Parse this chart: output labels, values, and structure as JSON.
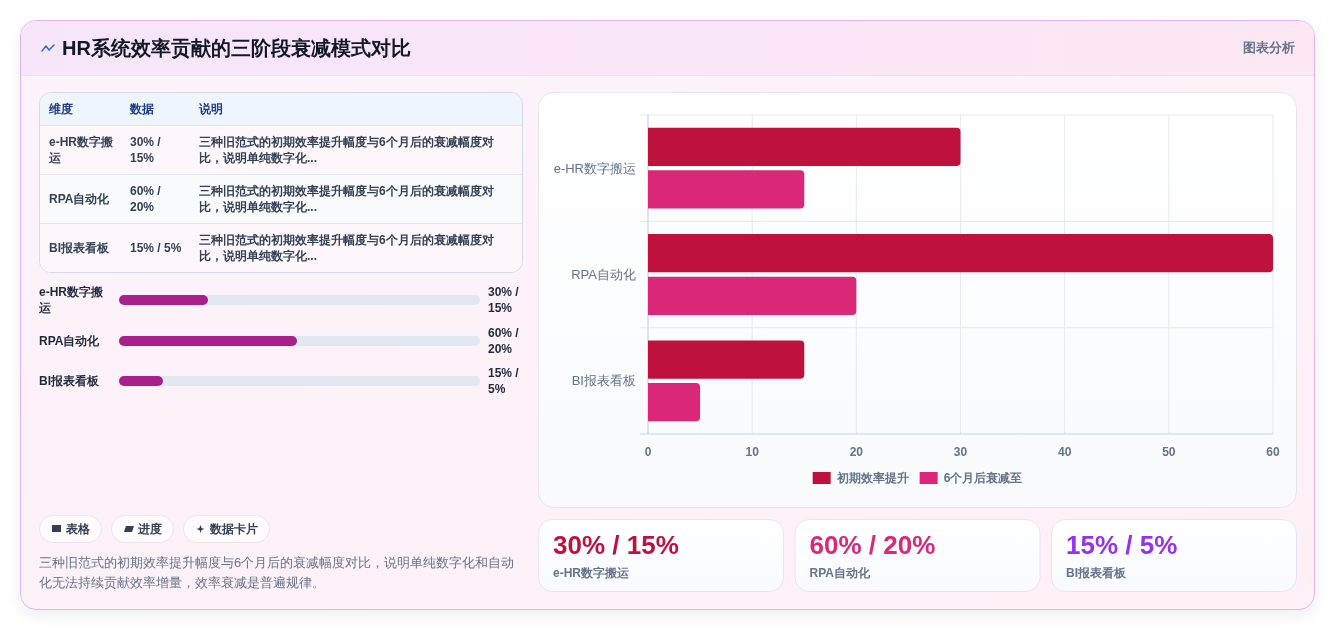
{
  "chart_data": [
    {
      "type": "other",
      "title": "HR系统效率贡献的三阶段衰减模式对比",
      "annotations": [
        "图表分析"
      ]
    },
    {
      "type": "other",
      "annotations": [
        "维度",
        "数据",
        "说明",
        "e-HR数字搬运",
        "30% / 15%",
        "三种旧范式的初期效率提升幅度与6个月后的衰减幅度对比，说明单纯数字化...",
        "RPA自动化",
        "60% / 20%",
        "三种旧范式的初期效率提升幅度与6个月后的衰减幅度对比，说明单纯数字化...",
        "BI报表看板",
        "15% / 5%",
        "三种旧范式的初期效率提升幅度与6个月后的衰减幅度对比，说明单纯数字化..."
      ]
    },
    {
      "type": "bar",
      "orientation": "horizontal",
      "categories": [
        "e-HR数字搬运",
        "RPA自动化",
        "BI报表看板"
      ],
      "series": [
        {
          "name": "初期效率提升",
          "color": "#be123c",
          "values": [
            30,
            60,
            15
          ]
        },
        {
          "name": "6个月后衰减至",
          "color": "#db2777",
          "values": [
            15,
            20,
            5
          ]
        }
      ],
      "xlim": [
        0,
        60
      ],
      "xticks": [
        0,
        10,
        20,
        30,
        40,
        50,
        60
      ],
      "grid": true,
      "legend": "bottom"
    },
    {
      "type": "bar",
      "orientation": "horizontal",
      "categories": [
        "e-HR数字搬运",
        "RPA自动化",
        "BI报表看板"
      ],
      "values": [
        30,
        60,
        15
      ],
      "value_labels": [
        "30% / 15%",
        "60% / 20%",
        "15% / 5%"
      ],
      "color": "#a8218a"
    },
    {
      "type": "other",
      "categories": [
        "表格",
        "进度",
        "数据卡片"
      ],
      "annotations": [
        "三种旧范式的初期效率提升幅度与6个月后的衰减幅度对比，说明单纯数字化和自动化无法持续贡献效率增量，效率衰减是普遍规律。"
      ]
    },
    {
      "type": "other",
      "categories": [
        "e-HR数字搬运",
        "RPA自动化",
        "BI报表看板"
      ],
      "value_labels": [
        "30% / 15%",
        "60% / 20%",
        "15% / 5%"
      ],
      "colors": [
        "#be123c",
        "#db2777",
        "#9333ea"
      ]
    }
  ]
}
